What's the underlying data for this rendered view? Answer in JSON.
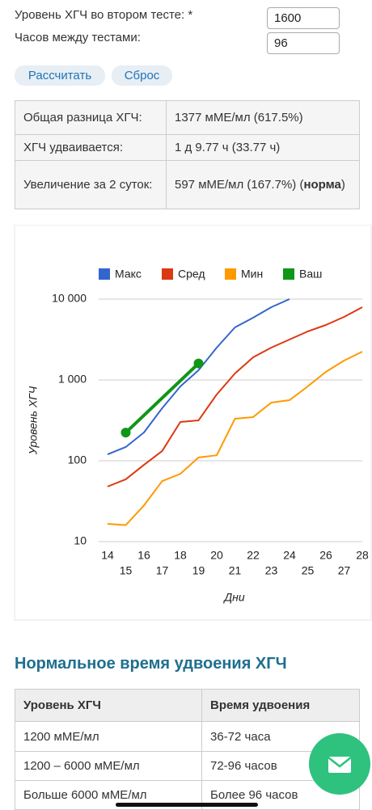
{
  "form": {
    "fields": [
      {
        "label": "Уровень ХГЧ во втором тесте: *",
        "value": "1600"
      },
      {
        "label": "Часов между тестами:",
        "value": "96"
      }
    ],
    "buttons": [
      "Рассчитать",
      "Сброс"
    ]
  },
  "results": {
    "rows": [
      [
        "Общая разница ХГЧ:",
        "1377 мМЕ/мл (617.5%)"
      ],
      [
        "ХГЧ удваивается:",
        "1 д 9.77 ч (33.77 ч)"
      ],
      [
        "Увеличение за 2 суток:",
        [
          "597 мМЕ/мл (167.7%) (",
          "норма",
          ")"
        ]
      ]
    ]
  },
  "chart_data": {
    "type": "line",
    "x_label": "Дни",
    "y_label": "Уровень ХГЧ",
    "log_y": true,
    "grid": true,
    "legend": "top",
    "xlim": [
      14,
      28
    ],
    "xticks": [
      14,
      15,
      16,
      17,
      18,
      19,
      20,
      21,
      22,
      23,
      24,
      25,
      26,
      27,
      28
    ],
    "ylim": [
      10,
      10000
    ],
    "yticks": [
      10,
      100,
      {
        "value": 1000,
        "label": "1 000"
      },
      {
        "value": 10000,
        "label": "10 000"
      }
    ],
    "series": [
      {
        "name": "Макс",
        "color": "#3366cc",
        "x": [
          14,
          15,
          16,
          17,
          18,
          19,
          20,
          21,
          22,
          23,
          24
        ],
        "values": [
          120,
          148,
          224,
          447,
          832,
          1318,
          2512,
          4467,
          5888,
          7943,
          10000
        ]
      },
      {
        "name": "Сред",
        "color": "#dc3912",
        "x": [
          14,
          15,
          16,
          17,
          18,
          19,
          20,
          21,
          22,
          23,
          24,
          25,
          26,
          27,
          28
        ],
        "values": [
          48,
          59,
          89,
          132,
          302,
          316,
          661,
          1202,
          1905,
          2512,
          3162,
          3981,
          4786,
          6026,
          7943
        ]
      },
      {
        "name": "Мин",
        "color": "#ff9900",
        "x": [
          14,
          15,
          16,
          17,
          18,
          19,
          20,
          21,
          22,
          23,
          24,
          25,
          26,
          27,
          28
        ],
        "values": [
          16.6,
          16,
          28,
          56,
          69,
          110,
          117,
          331,
          347,
          525,
          562,
          832,
          1259,
          1738,
          2239
        ]
      },
      {
        "name": "Ваш",
        "color": "#109618",
        "x": [
          15,
          19
        ],
        "values": [
          223,
          1600
        ],
        "markers": true
      }
    ]
  },
  "doubling": {
    "title": "Нормальное время удвоения ХГЧ",
    "header": [
      "Уровень ХГЧ",
      "Время удвоения"
    ],
    "rows": [
      [
        "1200 мМЕ/мл",
        "36-72 часа"
      ],
      [
        "1200 – 6000 мМЕ/мл",
        "72-96 часов"
      ],
      [
        "Больше 6000 мМЕ/мл",
        "Более 96 часов"
      ]
    ]
  }
}
